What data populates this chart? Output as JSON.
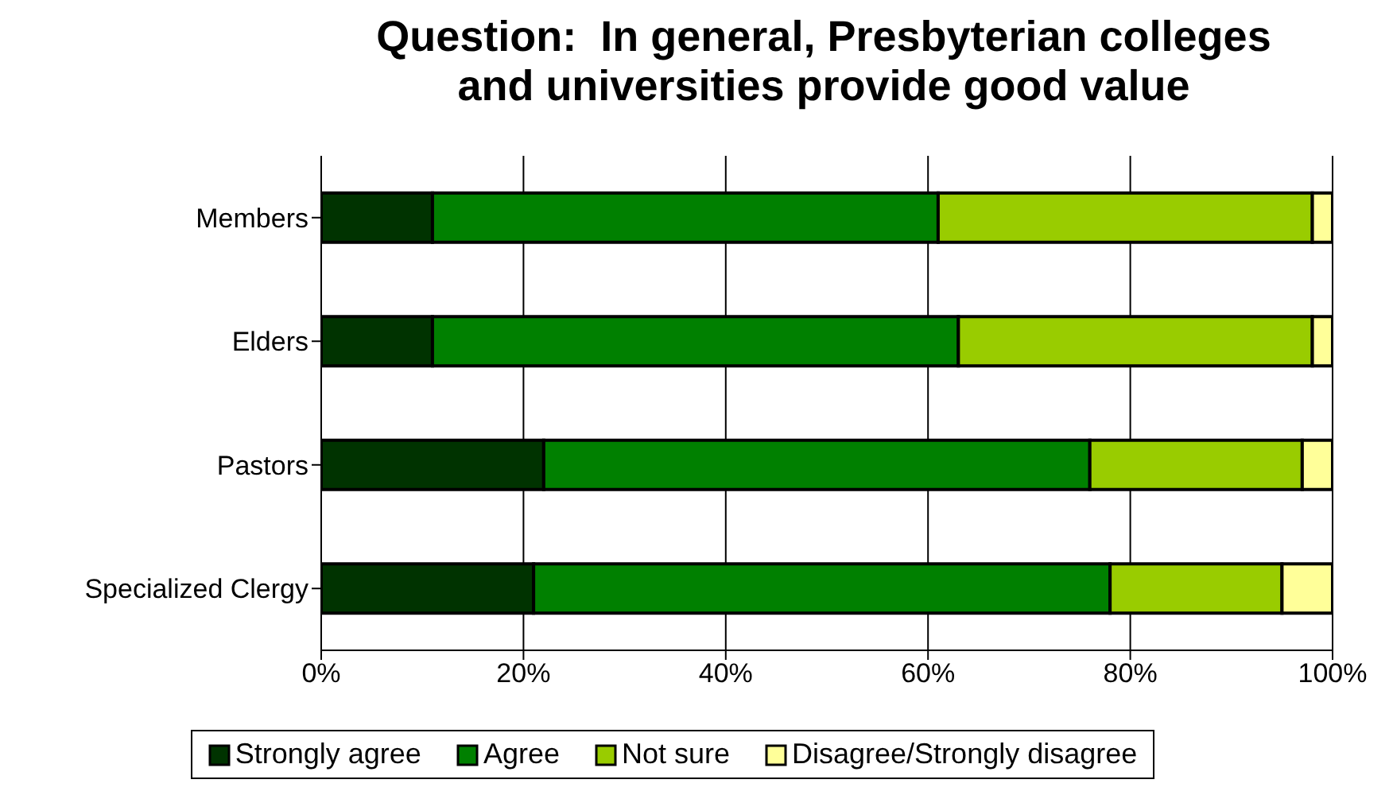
{
  "chart_data": {
    "type": "bar",
    "title": "Question:  In general, Presbyterian colleges and universities provide good value",
    "orientation": "horizontal",
    "stacked": true,
    "categories": [
      "Members",
      "Elders",
      "Pastors",
      "Specialized Clergy"
    ],
    "series": [
      {
        "name": "Strongly agree",
        "color": "#003300",
        "values": [
          11,
          11,
          22,
          21
        ]
      },
      {
        "name": "Agree",
        "color": "#008000",
        "values": [
          50,
          52,
          54,
          57
        ]
      },
      {
        "name": "Not sure",
        "color": "#99cc00",
        "values": [
          37,
          35,
          21,
          17
        ]
      },
      {
        "name": "Disagree/Strongly disagree",
        "color": "#ffff99",
        "values": [
          2,
          2,
          3,
          5
        ]
      }
    ],
    "xlim": [
      0,
      100
    ],
    "xticks": [
      {
        "value": 0,
        "label": "0%"
      },
      {
        "value": 20,
        "label": "20%"
      },
      {
        "value": 40,
        "label": "40%"
      },
      {
        "value": 60,
        "label": "60%"
      },
      {
        "value": 80,
        "label": "80%"
      },
      {
        "value": 100,
        "label": "100%"
      }
    ],
    "grid": "x",
    "legend": "bottom"
  }
}
